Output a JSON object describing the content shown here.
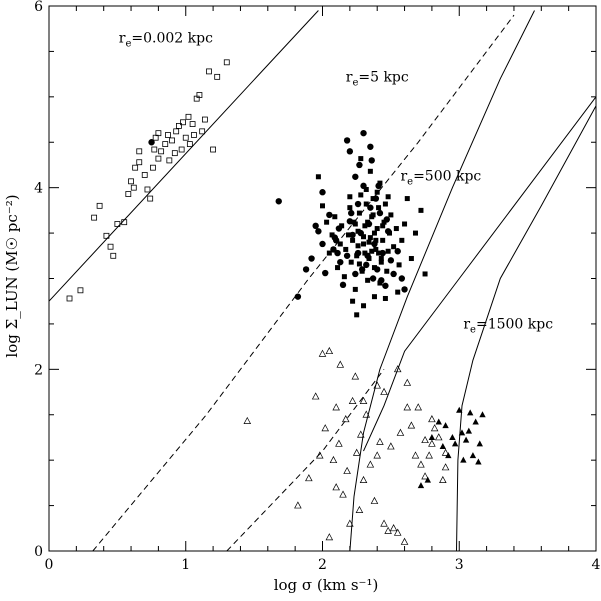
{
  "chart_data": {
    "type": "scatter",
    "xlabel": "log σ (km s⁻¹)",
    "ylabel": "log Σ_LUN (M☉ pc⁻²)",
    "xlim": [
      0,
      4
    ],
    "ylim": [
      0,
      6
    ],
    "x_ticks": [
      0,
      1,
      2,
      3,
      4
    ],
    "y_ticks": [
      0,
      2,
      4,
      6
    ],
    "grid": false,
    "legend": "none",
    "annotations": [
      {
        "text": "r_e=0.002 kpc",
        "base": "r",
        "sub": "e",
        "rest": "=0.002 kpc",
        "x": 0.51,
        "y": 5.6
      },
      {
        "text": "r_e=5 kpc",
        "base": "r",
        "sub": "e",
        "rest": "=5 kpc",
        "x": 2.17,
        "y": 5.17
      },
      {
        "text": "r_e=500 kpc",
        "base": "r",
        "sub": "e",
        "rest": "=500 kpc",
        "x": 2.57,
        "y": 4.08
      },
      {
        "text": "r_e=1500 kpc",
        "base": "r",
        "sub": "e",
        "rest": "=1500 kpc",
        "x": 3.03,
        "y": 2.45
      }
    ],
    "curves": [
      {
        "name": "r_e=0.002 kpc",
        "style": "solid",
        "points": [
          [
            0,
            2.75
          ],
          [
            1.6,
            5.35
          ],
          [
            1.97,
            5.95
          ]
        ]
      },
      {
        "name": "r_e=5 kpc dashed",
        "style": "dashed",
        "points": [
          [
            0.32,
            0
          ],
          [
            1.15,
            1.5
          ],
          [
            1.9,
            3.0
          ],
          [
            2.7,
            4.5
          ],
          [
            3.4,
            5.9
          ]
        ]
      },
      {
        "name": "r_e=5 kpc solid",
        "style": "solid",
        "points": [
          [
            2.2,
            0
          ],
          [
            2.23,
            0.6
          ],
          [
            2.3,
            1.3
          ],
          [
            2.42,
            2.0
          ],
          [
            2.62,
            2.8
          ],
          [
            2.95,
            4.0
          ],
          [
            3.3,
            5.2
          ],
          [
            3.55,
            5.95
          ]
        ]
      },
      {
        "name": "r_e=500 kpc dashed",
        "style": "dashed",
        "points": [
          [
            1.3,
            0
          ],
          [
            2.0,
            1.1
          ],
          [
            2.45,
            2.0
          ]
        ]
      },
      {
        "name": "r_e=500 kpc solid",
        "style": "solid",
        "points": [
          [
            2.3,
            1.1
          ],
          [
            2.45,
            1.6
          ],
          [
            2.6,
            2.2
          ],
          [
            3.0,
            3.0
          ],
          [
            3.5,
            4.0
          ],
          [
            4.0,
            5.0
          ]
        ]
      },
      {
        "name": "r_e=1500 kpc",
        "style": "solid",
        "points": [
          [
            2.98,
            0
          ],
          [
            2.99,
            1.0
          ],
          [
            3.02,
            1.6
          ],
          [
            3.1,
            2.1
          ],
          [
            3.3,
            3.0
          ],
          [
            3.6,
            3.8
          ],
          [
            4.0,
            4.9
          ]
        ]
      }
    ],
    "series": [
      {
        "marker": "open-square",
        "points": [
          [
            0.15,
            2.78
          ],
          [
            0.23,
            2.87
          ],
          [
            0.33,
            3.67
          ],
          [
            0.37,
            3.8
          ],
          [
            0.42,
            3.47
          ],
          [
            0.45,
            3.35
          ],
          [
            0.47,
            3.25
          ],
          [
            0.5,
            3.6
          ],
          [
            0.55,
            3.62
          ],
          [
            0.58,
            3.93
          ],
          [
            0.6,
            4.07
          ],
          [
            0.62,
            4.0
          ],
          [
            0.63,
            4.22
          ],
          [
            0.66,
            4.28
          ],
          [
            0.66,
            4.4
          ],
          [
            0.7,
            4.14
          ],
          [
            0.72,
            3.98
          ],
          [
            0.74,
            3.88
          ],
          [
            0.76,
            4.22
          ],
          [
            0.8,
            4.32
          ],
          [
            0.82,
            4.4
          ],
          [
            0.85,
            4.48
          ],
          [
            0.87,
            4.58
          ],
          [
            0.9,
            4.52
          ],
          [
            0.93,
            4.62
          ],
          [
            0.95,
            4.68
          ],
          [
            0.98,
            4.72
          ],
          [
            1.0,
            4.55
          ],
          [
            1.03,
            4.48
          ],
          [
            1.05,
            4.7
          ],
          [
            1.08,
            4.98
          ],
          [
            1.1,
            5.02
          ],
          [
            1.12,
            4.62
          ],
          [
            1.14,
            4.75
          ],
          [
            1.17,
            5.28
          ],
          [
            1.2,
            4.42
          ],
          [
            1.23,
            5.22
          ],
          [
            1.3,
            5.38
          ],
          [
            0.77,
            4.42
          ],
          [
            0.78,
            4.55
          ],
          [
            0.8,
            4.6
          ],
          [
            0.88,
            4.3
          ],
          [
            0.92,
            4.38
          ],
          [
            0.97,
            4.42
          ],
          [
            1.02,
            4.78
          ],
          [
            1.06,
            4.58
          ]
        ]
      },
      {
        "marker": "filled-circle",
        "points": [
          [
            0.75,
            4.5
          ],
          [
            1.68,
            3.85
          ],
          [
            1.82,
            2.8
          ],
          [
            1.88,
            3.1
          ],
          [
            1.92,
            3.22
          ],
          [
            1.95,
            3.58
          ],
          [
            1.97,
            3.52
          ],
          [
            2.0,
            3.38
          ],
          [
            2.02,
            3.06
          ],
          [
            2.05,
            3.7
          ],
          [
            2.08,
            3.32
          ],
          [
            2.1,
            3.42
          ],
          [
            2.12,
            3.55
          ],
          [
            2.15,
            2.93
          ],
          [
            2.18,
            3.25
          ],
          [
            2.2,
            3.63
          ],
          [
            2.22,
            3.48
          ],
          [
            2.24,
            4.12
          ],
          [
            2.26,
            3.28
          ],
          [
            2.28,
            3.5
          ],
          [
            2.3,
            4.02
          ],
          [
            2.32,
            3.15
          ],
          [
            2.34,
            3.6
          ],
          [
            2.36,
            4.3
          ],
          [
            2.38,
            3.38
          ],
          [
            2.4,
            3.1
          ],
          [
            2.42,
            3.72
          ],
          [
            2.44,
            3.28
          ],
          [
            2.46,
            2.92
          ],
          [
            2.48,
            3.52
          ],
          [
            2.5,
            3.2
          ],
          [
            2.52,
            3.05
          ],
          [
            2.55,
            3.3
          ],
          [
            2.58,
            3.0
          ],
          [
            2.6,
            2.88
          ],
          [
            2.0,
            3.95
          ],
          [
            2.3,
            4.6
          ],
          [
            2.35,
            4.45
          ],
          [
            2.2,
            4.4
          ],
          [
            2.18,
            4.52
          ],
          [
            2.27,
            4.25
          ],
          [
            2.26,
            3.82
          ],
          [
            2.33,
            3.25
          ],
          [
            2.37,
            3.0
          ],
          [
            2.43,
            2.98
          ],
          [
            2.29,
            3.1
          ],
          [
            2.24,
            3.05
          ],
          [
            2.13,
            3.18
          ],
          [
            2.11,
            3.28
          ],
          [
            2.09,
            3.45
          ],
          [
            2.47,
            3.65
          ],
          [
            2.39,
            3.88
          ],
          [
            2.41,
            4.02
          ],
          [
            2.21,
            3.72
          ],
          [
            2.35,
            3.78
          ]
        ]
      },
      {
        "marker": "filled-square",
        "points": [
          [
            1.97,
            4.12
          ],
          [
            2.0,
            3.8
          ],
          [
            2.03,
            3.62
          ],
          [
            2.05,
            3.28
          ],
          [
            2.07,
            3.48
          ],
          [
            2.09,
            3.68
          ],
          [
            2.11,
            3.12
          ],
          [
            2.13,
            3.38
          ],
          [
            2.14,
            3.58
          ],
          [
            2.16,
            3.02
          ],
          [
            2.17,
            3.32
          ],
          [
            2.19,
            3.48
          ],
          [
            2.2,
            3.78
          ],
          [
            2.21,
            3.18
          ],
          [
            2.22,
            3.42
          ],
          [
            2.23,
            3.62
          ],
          [
            2.24,
            2.88
          ],
          [
            2.25,
            3.25
          ],
          [
            2.26,
            3.52
          ],
          [
            2.27,
            3.72
          ],
          [
            2.28,
            3.92
          ],
          [
            2.29,
            3.08
          ],
          [
            2.3,
            3.38
          ],
          [
            2.31,
            3.58
          ],
          [
            2.32,
            3.82
          ],
          [
            2.33,
            2.98
          ],
          [
            2.34,
            3.22
          ],
          [
            2.35,
            3.45
          ],
          [
            2.36,
            3.68
          ],
          [
            2.37,
            3.88
          ],
          [
            2.38,
            3.12
          ],
          [
            2.39,
            3.32
          ],
          [
            2.4,
            3.55
          ],
          [
            2.41,
            3.78
          ],
          [
            2.42,
            2.95
          ],
          [
            2.43,
            3.18
          ],
          [
            2.44,
            3.42
          ],
          [
            2.45,
            3.62
          ],
          [
            2.46,
            3.82
          ],
          [
            2.47,
            3.08
          ],
          [
            2.48,
            3.3
          ],
          [
            2.49,
            3.5
          ],
          [
            2.5,
            3.7
          ],
          [
            2.52,
            3.35
          ],
          [
            2.54,
            3.55
          ],
          [
            2.56,
            3.15
          ],
          [
            2.58,
            3.42
          ],
          [
            2.6,
            3.6
          ],
          [
            2.62,
            3.88
          ],
          [
            2.65,
            3.22
          ],
          [
            2.68,
            3.5
          ],
          [
            2.72,
            3.75
          ],
          [
            2.75,
            3.05
          ],
          [
            2.42,
            4.05
          ],
          [
            2.35,
            4.18
          ],
          [
            2.28,
            4.32
          ],
          [
            2.22,
            2.75
          ],
          [
            2.3,
            2.7
          ],
          [
            2.38,
            2.8
          ],
          [
            2.46,
            2.78
          ],
          [
            2.55,
            2.85
          ],
          [
            2.25,
            2.6
          ],
          [
            2.2,
            3.9
          ],
          [
            2.32,
            3.98
          ],
          [
            2.4,
            3.95
          ],
          [
            2.48,
            3.9
          ],
          [
            2.36,
            3.3
          ],
          [
            2.34,
            3.4
          ],
          [
            2.38,
            3.5
          ],
          [
            2.26,
            3.36
          ],
          [
            2.3,
            3.46
          ],
          [
            2.41,
            3.28
          ],
          [
            2.44,
            3.58
          ],
          [
            2.27,
            3.16
          ],
          [
            2.33,
            3.62
          ],
          [
            2.37,
            3.7
          ],
          [
            2.24,
            3.6
          ],
          [
            2.43,
            3.22
          ],
          [
            2.39,
            3.42
          ],
          [
            2.31,
            3.28
          ]
        ]
      },
      {
        "marker": "open-triangle",
        "points": [
          [
            1.45,
            1.43
          ],
          [
            1.82,
            0.5
          ],
          [
            1.9,
            0.8
          ],
          [
            1.95,
            1.7
          ],
          [
            2.0,
            2.17
          ],
          [
            2.02,
            1.35
          ],
          [
            2.05,
            0.15
          ],
          [
            2.05,
            2.2
          ],
          [
            2.08,
            1.0
          ],
          [
            2.1,
            1.58
          ],
          [
            2.12,
            1.18
          ],
          [
            2.13,
            2.05
          ],
          [
            2.15,
            0.62
          ],
          [
            2.17,
            1.45
          ],
          [
            2.18,
            0.88
          ],
          [
            2.2,
            0.3
          ],
          [
            2.22,
            1.65
          ],
          [
            2.24,
            1.92
          ],
          [
            2.25,
            1.08
          ],
          [
            2.27,
            0.45
          ],
          [
            2.28,
            1.28
          ],
          [
            2.3,
            0.78
          ],
          [
            2.32,
            1.5
          ],
          [
            2.35,
            0.95
          ],
          [
            2.38,
            0.55
          ],
          [
            2.4,
            1.05
          ],
          [
            2.42,
            1.2
          ],
          [
            2.45,
            0.3
          ],
          [
            2.48,
            0.22
          ],
          [
            2.5,
            1.15
          ],
          [
            2.52,
            0.25
          ],
          [
            2.55,
            0.2
          ],
          [
            2.57,
            1.3
          ],
          [
            2.6,
            0.1
          ],
          [
            2.62,
            1.85
          ],
          [
            2.65,
            1.38
          ],
          [
            2.68,
            1.05
          ],
          [
            2.72,
            0.95
          ],
          [
            2.75,
            0.82
          ],
          [
            2.8,
            1.18
          ],
          [
            2.82,
            1.35
          ],
          [
            2.85,
            1.25
          ],
          [
            2.88,
            0.78
          ],
          [
            2.9,
            0.92
          ],
          [
            2.55,
            2.0
          ],
          [
            2.45,
            1.75
          ],
          [
            2.1,
            0.7
          ],
          [
            2.3,
            1.65
          ],
          [
            2.9,
            1.08
          ],
          [
            2.8,
            1.45
          ],
          [
            2.75,
            1.22
          ],
          [
            2.62,
            1.58
          ],
          [
            2.4,
            1.82
          ],
          [
            1.98,
            1.05
          ],
          [
            2.7,
            1.58
          ],
          [
            2.78,
            1.05
          ]
        ]
      },
      {
        "marker": "filled-triangle",
        "points": [
          [
            2.72,
            0.72
          ],
          [
            2.77,
            0.78
          ],
          [
            2.8,
            1.25
          ],
          [
            2.85,
            1.42
          ],
          [
            2.88,
            1.15
          ],
          [
            2.9,
            1.38
          ],
          [
            2.92,
            1.05
          ],
          [
            2.95,
            1.25
          ],
          [
            2.97,
            1.18
          ],
          [
            3.0,
            1.55
          ],
          [
            3.02,
            1.3
          ],
          [
            3.05,
            1.22
          ],
          [
            3.08,
            1.52
          ],
          [
            3.1,
            1.05
          ],
          [
            3.12,
            1.42
          ],
          [
            3.14,
            0.98
          ],
          [
            3.15,
            1.18
          ],
          [
            3.17,
            1.5
          ],
          [
            3.07,
            1.32
          ],
          [
            3.03,
            1.0
          ]
        ]
      }
    ]
  }
}
